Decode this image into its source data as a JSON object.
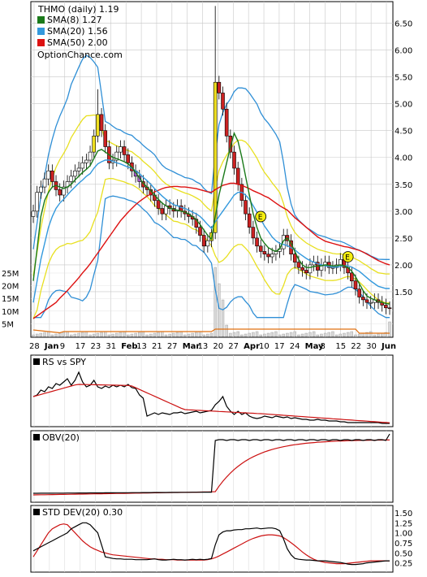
{
  "chart_data": [
    {
      "type": "candlestick",
      "title": "THMO (daily) 1.19",
      "watermark": "OptionChance.com",
      "legend": [
        {
          "label": "SMA(8) 1.27",
          "color": "#1a7a1a"
        },
        {
          "label": "SMA(20) 1.56",
          "color": "#3399dd"
        },
        {
          "label": "SMA(50) 2.00",
          "color": "#dd1111"
        }
      ],
      "y_ticks": [
        "6.50",
        "6.00",
        "5.50",
        "5.00",
        "4.50",
        "4.00",
        "3.50",
        "3.00",
        "2.50",
        "2.00",
        "1.50"
      ],
      "ylim": [
        1.0,
        6.75
      ],
      "volume_ticks": [
        "25M",
        "20M",
        "15M",
        "10M",
        "5M"
      ],
      "x_tick_labels": [
        "28",
        "Jan",
        "9",
        "17",
        "23",
        "31",
        "Feb",
        "13",
        "21",
        "27",
        "Mar",
        "13",
        "20",
        "27",
        "Apr",
        "10",
        "17",
        "24",
        "May",
        "8",
        "15",
        "22",
        "30",
        "Jun"
      ],
      "earnings_markers": [
        "E",
        "E"
      ],
      "series": {
        "close": [
          3.0,
          3.35,
          3.45,
          3.6,
          3.75,
          3.55,
          3.4,
          3.3,
          3.45,
          3.55,
          3.65,
          3.75,
          3.8,
          3.9,
          3.95,
          4.1,
          4.4,
          4.8,
          4.5,
          4.2,
          3.9,
          3.95,
          4.1,
          4.2,
          4.05,
          3.9,
          3.75,
          3.65,
          3.55,
          3.45,
          3.4,
          3.3,
          3.2,
          3.05,
          2.95,
          3.1,
          3.05,
          3.0,
          3.1,
          3.0,
          2.95,
          2.9,
          2.85,
          2.7,
          2.55,
          2.35,
          2.45,
          2.6,
          5.4,
          5.2,
          4.9,
          4.4,
          4.1,
          3.8,
          3.5,
          3.2,
          2.95,
          2.7,
          2.5,
          2.35,
          2.25,
          2.2,
          2.15,
          2.2,
          2.25,
          2.3,
          2.55,
          2.45,
          2.2,
          2.05,
          1.95,
          1.9,
          1.85,
          2.0,
          2.05,
          1.9,
          2.0,
          2.05,
          1.95,
          1.95,
          2.0,
          2.1,
          1.95,
          1.85,
          1.7,
          1.55,
          1.4,
          1.35,
          1.3,
          1.3,
          1.35,
          1.3,
          1.25,
          1.2,
          1.19
        ],
        "sma8": [
          1.7,
          2.3,
          2.9,
          3.2,
          3.35,
          3.45,
          3.48,
          3.45,
          3.42,
          3.45,
          3.5,
          3.58,
          3.65,
          3.72,
          3.78,
          3.85,
          3.98,
          4.12,
          4.15,
          4.1,
          4.05,
          4.0,
          3.98,
          3.95,
          3.92,
          3.88,
          3.82,
          3.72,
          3.62,
          3.52,
          3.45,
          3.38,
          3.3,
          3.22,
          3.15,
          3.1,
          3.06,
          3.03,
          3.02,
          3.0,
          2.98,
          2.95,
          2.9,
          2.84,
          2.75,
          2.65,
          2.55,
          2.48,
          2.9,
          3.3,
          3.6,
          3.9,
          4.2,
          4.45,
          4.3,
          4.0,
          3.65,
          3.3,
          2.95,
          2.7,
          2.5,
          2.4,
          2.32,
          2.28,
          2.25,
          2.3,
          2.45,
          2.5,
          2.4,
          2.25,
          2.1,
          2.0,
          1.95,
          1.95,
          1.97,
          1.98,
          1.98,
          2.0,
          1.99,
          1.98,
          1.98,
          2.0,
          1.98,
          1.95,
          1.88,
          1.78,
          1.65,
          1.52,
          1.42,
          1.38,
          1.35,
          1.32,
          1.3,
          1.28,
          1.27
        ],
        "sma20": [
          1.3,
          1.7,
          2.1,
          2.4,
          2.7,
          2.9,
          3.05,
          3.15,
          3.22,
          3.3,
          3.38,
          3.45,
          3.52,
          3.58,
          3.65,
          3.7,
          3.8,
          3.88,
          3.92,
          3.95,
          3.95,
          3.93,
          3.9,
          3.88,
          3.85,
          3.82,
          3.8,
          3.75,
          3.7,
          3.63,
          3.57,
          3.5,
          3.42,
          3.35,
          3.28,
          3.22,
          3.17,
          3.12,
          3.1,
          3.07,
          3.05,
          3.02,
          2.98,
          2.95,
          2.9,
          2.83,
          2.75,
          2.68,
          2.8,
          2.9,
          3.0,
          3.1,
          3.2,
          3.3,
          3.35,
          3.35,
          3.3,
          3.22,
          3.1,
          2.98,
          2.85,
          2.72,
          2.62,
          2.52,
          2.45,
          2.4,
          2.38,
          2.36,
          2.32,
          2.28,
          2.22,
          2.17,
          2.12,
          2.08,
          2.05,
          2.02,
          2.0,
          1.98,
          1.97,
          1.96,
          1.96,
          1.97,
          1.98,
          1.98,
          1.96,
          1.92,
          1.88,
          1.82,
          1.76,
          1.7,
          1.65,
          1.6,
          1.58,
          1.56,
          1.56
        ],
        "sma50": [
          1.0,
          1.05,
          1.1,
          1.15,
          1.2,
          1.25,
          1.3,
          1.38,
          1.45,
          1.52,
          1.6,
          1.68,
          1.76,
          1.85,
          1.93,
          2.02,
          2.12,
          2.22,
          2.32,
          2.42,
          2.52,
          2.62,
          2.72,
          2.82,
          2.9,
          2.98,
          3.05,
          3.12,
          3.18,
          3.23,
          3.28,
          3.32,
          3.36,
          3.39,
          3.42,
          3.44,
          3.45,
          3.46,
          3.46,
          3.45,
          3.45,
          3.44,
          3.43,
          3.42,
          3.4,
          3.38,
          3.36,
          3.35,
          3.4,
          3.44,
          3.48,
          3.5,
          3.52,
          3.52,
          3.5,
          3.48,
          3.45,
          3.42,
          3.38,
          3.35,
          3.32,
          3.28,
          3.25,
          3.2,
          3.15,
          3.1,
          3.06,
          3.02,
          2.95,
          2.88,
          2.82,
          2.76,
          2.7,
          2.64,
          2.58,
          2.52,
          2.48,
          2.44,
          2.42,
          2.4,
          2.38,
          2.36,
          2.34,
          2.33,
          2.31,
          2.29,
          2.27,
          2.24,
          2.2,
          2.16,
          2.12,
          2.08,
          2.05,
          2.02,
          2.0
        ]
      }
    },
    {
      "type": "line",
      "title": "RS vs SPY"
    },
    {
      "type": "line",
      "title": "OBV(20)"
    },
    {
      "type": "line",
      "title": "STD DEV(20) 0.30",
      "y_ticks": [
        "1.50",
        "1.25",
        "1.00",
        "0.75",
        "0.50",
        "0.25"
      ],
      "ylim": [
        0.1,
        1.6
      ],
      "series": {
        "std": [
          0.55,
          0.6,
          0.65,
          0.7,
          0.75,
          0.8,
          0.85,
          0.9,
          0.95,
          1.0,
          1.1,
          1.15,
          1.2,
          1.25,
          1.25,
          1.2,
          1.1,
          1.0,
          0.7,
          0.4,
          0.38,
          0.36,
          0.35,
          0.35,
          0.34,
          0.34,
          0.34,
          0.33,
          0.33,
          0.33,
          0.33,
          0.34,
          0.35,
          0.33,
          0.32,
          0.32,
          0.33,
          0.34,
          0.33,
          0.33,
          0.32,
          0.33,
          0.34,
          0.33,
          0.34,
          0.33,
          0.34,
          0.36,
          0.7,
          0.95,
          1.02,
          1.05,
          1.05,
          1.07,
          1.08,
          1.08,
          1.1,
          1.1,
          1.11,
          1.12,
          1.1,
          1.11,
          1.12,
          1.12,
          1.1,
          1.05,
          0.85,
          0.6,
          0.45,
          0.36,
          0.34,
          0.33,
          0.32,
          0.32,
          0.31,
          0.3,
          0.3,
          0.3,
          0.29,
          0.28,
          0.27,
          0.26,
          0.24,
          0.22,
          0.21,
          0.21,
          0.22,
          0.23,
          0.25,
          0.26,
          0.27,
          0.28,
          0.29,
          0.3,
          0.3
        ],
        "std_avg": [
          0.4,
          0.55,
          0.7,
          0.85,
          1.0,
          1.1,
          1.15,
          1.2,
          1.22,
          1.2,
          1.1,
          1.0,
          0.9,
          0.8,
          0.72,
          0.65,
          0.6,
          0.56,
          0.52,
          0.5,
          0.47,
          0.45,
          0.44,
          0.43,
          0.42,
          0.41,
          0.4,
          0.39,
          0.38,
          0.37,
          0.36,
          0.35,
          0.35,
          0.34,
          0.34,
          0.33,
          0.33,
          0.33,
          0.32,
          0.32,
          0.32,
          0.32,
          0.32,
          0.32,
          0.32,
          0.32,
          0.33,
          0.35,
          0.38,
          0.42,
          0.47,
          0.52,
          0.57,
          0.62,
          0.67,
          0.72,
          0.77,
          0.82,
          0.86,
          0.89,
          0.92,
          0.94,
          0.95,
          0.95,
          0.94,
          0.92,
          0.88,
          0.82,
          0.75,
          0.68,
          0.6,
          0.52,
          0.45,
          0.39,
          0.34,
          0.3,
          0.28,
          0.26,
          0.25,
          0.24,
          0.23,
          0.23,
          0.23,
          0.24,
          0.25,
          0.26,
          0.27,
          0.28,
          0.29,
          0.3,
          0.3,
          0.3,
          0.3,
          0.3,
          0.3
        ]
      }
    }
  ]
}
